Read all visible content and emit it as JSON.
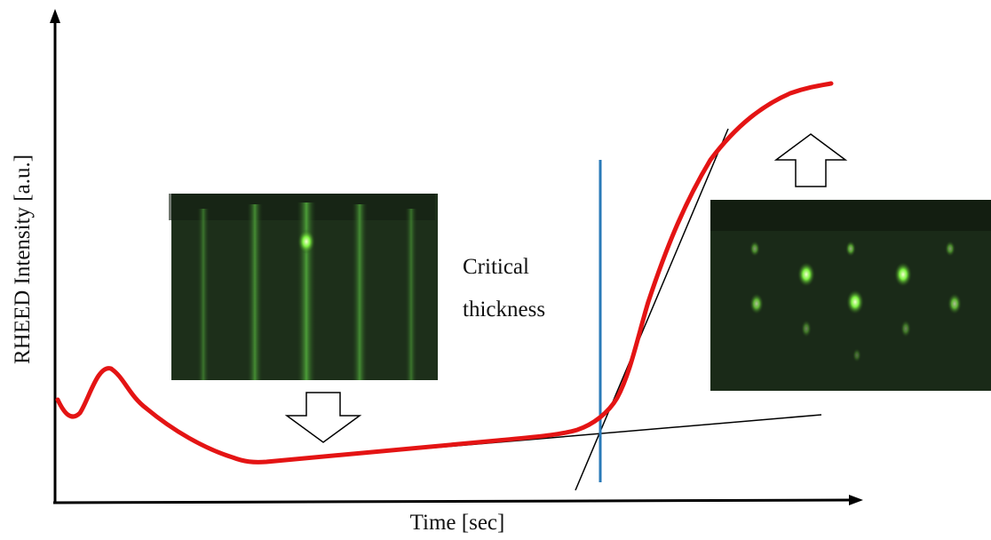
{
  "axes": {
    "y_label": "RHEED Intensity [a.u.]",
    "x_label": "Time [sec]"
  },
  "annotation": {
    "lines": [
      "Critical",
      "thickness"
    ]
  }
}
